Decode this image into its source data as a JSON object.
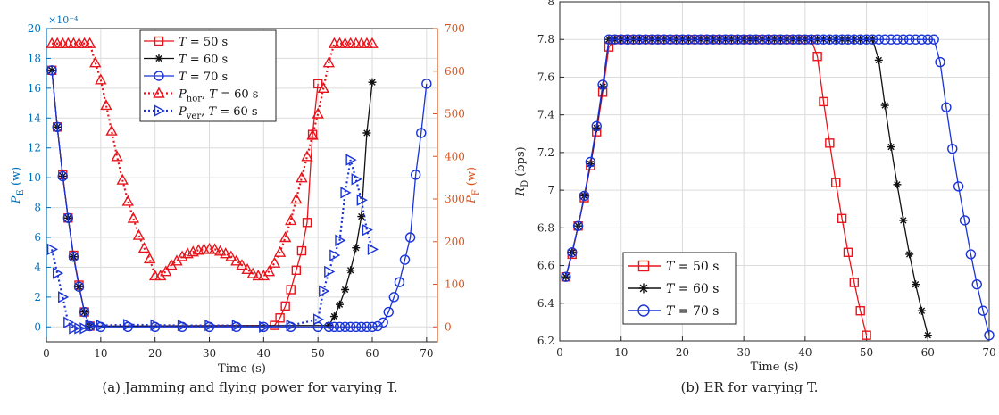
{
  "chart_data": [
    {
      "type": "line",
      "id": "a",
      "caption": "(a) Jamming and flying power for varying T.",
      "xlabel": "Time (s)",
      "ylabel": "P_E (w)",
      "y2label": "P_F (w)",
      "exponent_label": "×10⁻⁴",
      "xlim": [
        0,
        72
      ],
      "ylim": [
        -1,
        20
      ],
      "y2lim": [
        -35,
        700
      ],
      "xticks": [
        0,
        10,
        20,
        30,
        40,
        50,
        60,
        70
      ],
      "yticks": [
        0,
        2,
        4,
        6,
        8,
        10,
        12,
        14,
        16,
        18,
        20
      ],
      "y2ticks": [
        0,
        100,
        200,
        300,
        400,
        500,
        600,
        700
      ],
      "grid": true,
      "legend_position": "top-center",
      "colors": {
        "left_axis": "#0072BD",
        "right_axis": "#D95319",
        "red": "#E8141B",
        "black": "#111111",
        "blue": "#1A34D6"
      },
      "series": [
        {
          "name": "T = 50 s",
          "axis": "left",
          "color": "#E8141B",
          "marker": "square",
          "dash": "solid",
          "x": [
            1,
            2,
            3,
            4,
            5,
            6,
            7,
            8,
            42,
            43,
            44,
            45,
            46,
            47,
            48,
            49,
            50
          ],
          "y": [
            17.2,
            13.4,
            10.2,
            7.3,
            4.8,
            2.8,
            1.0,
            0.05,
            0.1,
            0.6,
            1.4,
            2.5,
            3.8,
            5.1,
            7.0,
            12.9,
            16.3
          ]
        },
        {
          "name": "T = 60 s",
          "axis": "left",
          "color": "#111111",
          "marker": "star",
          "dash": "solid",
          "x": [
            1,
            2,
            3,
            4,
            5,
            6,
            7,
            8,
            52,
            53,
            54,
            55,
            56,
            57,
            58,
            59,
            60
          ],
          "y": [
            17.2,
            13.4,
            10.1,
            7.3,
            4.7,
            2.7,
            1.0,
            0.05,
            0.1,
            0.7,
            1.5,
            2.5,
            3.8,
            5.3,
            7.4,
            13.0,
            16.4
          ]
        },
        {
          "name": "T = 70 s",
          "axis": "left",
          "color": "#1A34D6",
          "marker": "circle",
          "dash": "solid",
          "x": [
            1,
            2,
            3,
            4,
            5,
            6,
            7,
            8,
            10,
            15,
            20,
            25,
            30,
            35,
            40,
            45,
            50,
            52,
            53,
            54,
            55,
            56,
            57,
            58,
            59,
            60,
            61,
            62,
            63,
            64,
            65,
            66,
            67,
            68,
            69,
            70
          ],
          "y": [
            17.2,
            13.4,
            10.1,
            7.3,
            4.7,
            2.7,
            1.0,
            0.05,
            0.0,
            0.0,
            0.0,
            0.0,
            0.0,
            0.0,
            0.0,
            0.0,
            0.0,
            0.0,
            0.0,
            0.0,
            0.0,
            0.0,
            0.0,
            0.0,
            0.0,
            0.0,
            0.05,
            0.3,
            1.0,
            2.0,
            3.0,
            4.5,
            6.0,
            10.2,
            13.0,
            16.3
          ]
        },
        {
          "name": "P_hor, T = 60 s",
          "axis": "right",
          "color": "#E8141B",
          "marker": "triangle-up",
          "dash": "dotted",
          "x": [
            1,
            2,
            3,
            4,
            5,
            6,
            7,
            8,
            9,
            10,
            11,
            12,
            13,
            14,
            15,
            16,
            17,
            18,
            19,
            20,
            21,
            22,
            23,
            24,
            25,
            26,
            27,
            28,
            29,
            30,
            31,
            32,
            33,
            34,
            35,
            36,
            37,
            38,
            39,
            40,
            41,
            42,
            43,
            44,
            45,
            46,
            47,
            48,
            49,
            50,
            51,
            52,
            53,
            54,
            55,
            56,
            57,
            58,
            59,
            60
          ],
          "y": [
            665,
            665,
            665,
            665,
            665,
            665,
            665,
            665,
            620,
            580,
            520,
            460,
            400,
            345,
            295,
            255,
            215,
            185,
            160,
            120,
            120,
            130,
            145,
            155,
            165,
            172,
            176,
            180,
            182,
            183,
            182,
            178,
            172,
            165,
            155,
            145,
            135,
            125,
            120,
            120,
            130,
            150,
            175,
            210,
            250,
            300,
            350,
            400,
            450,
            500,
            560,
            620,
            665,
            665,
            665,
            665,
            665,
            665,
            665,
            665
          ]
        },
        {
          "name": "P_ver, T = 60 s",
          "axis": "left",
          "color": "#1A34D6",
          "marker": "triangle-right",
          "dash": "dotted",
          "x": [
            1,
            2,
            3,
            4,
            5,
            6,
            7,
            8,
            10,
            15,
            20,
            25,
            30,
            35,
            40,
            45,
            50,
            51,
            52,
            53,
            54,
            55,
            56,
            57,
            58,
            59,
            60
          ],
          "y": [
            5.2,
            3.6,
            2.0,
            0.3,
            -0.1,
            -0.1,
            -0.1,
            0.1,
            0.1,
            0.15,
            0.12,
            0.1,
            0.1,
            0.1,
            0.0,
            0.1,
            0.5,
            2.4,
            3.7,
            4.8,
            5.8,
            9.0,
            11.2,
            9.9,
            8.5,
            6.5,
            5.2
          ]
        }
      ]
    },
    {
      "type": "line",
      "id": "b",
      "caption": "(b) ER for varying T.",
      "xlabel": "Time (s)",
      "ylabel": "R_D (bps)",
      "xlim": [
        0,
        70
      ],
      "ylim": [
        6.2,
        8
      ],
      "xticks": [
        0,
        10,
        20,
        30,
        40,
        50,
        60,
        70
      ],
      "yticks": [
        6.2,
        6.4,
        6.6,
        6.8,
        7,
        7.2,
        7.4,
        7.6,
        7.8,
        8
      ],
      "grid": true,
      "legend_position": "bottom-left",
      "series": [
        {
          "name": "T = 50 s",
          "color": "#E8141B",
          "marker": "square",
          "x": [
            1,
            2,
            3,
            4,
            5,
            6,
            7,
            8,
            9,
            10,
            11,
            12,
            13,
            14,
            15,
            16,
            17,
            18,
            19,
            20,
            21,
            22,
            23,
            24,
            25,
            26,
            27,
            28,
            29,
            30,
            31,
            32,
            33,
            34,
            35,
            36,
            37,
            38,
            39,
            40,
            41,
            42,
            43,
            44,
            45,
            46,
            47,
            48,
            49,
            50
          ],
          "y": [
            6.54,
            6.66,
            6.81,
            6.96,
            7.13,
            7.31,
            7.52,
            7.76,
            7.8,
            7.8,
            7.8,
            7.8,
            7.8,
            7.8,
            7.8,
            7.8,
            7.8,
            7.8,
            7.8,
            7.8,
            7.8,
            7.8,
            7.8,
            7.8,
            7.8,
            7.8,
            7.8,
            7.8,
            7.8,
            7.8,
            7.8,
            7.8,
            7.8,
            7.8,
            7.8,
            7.8,
            7.8,
            7.8,
            7.8,
            7.8,
            7.8,
            7.71,
            7.47,
            7.25,
            7.04,
            6.85,
            6.67,
            6.51,
            6.36,
            6.23
          ]
        },
        {
          "name": "T = 60 s",
          "color": "#111111",
          "marker": "star",
          "x": [
            1,
            2,
            3,
            4,
            5,
            6,
            7,
            8,
            9,
            10,
            11,
            12,
            13,
            14,
            15,
            16,
            17,
            18,
            19,
            20,
            21,
            22,
            23,
            24,
            25,
            26,
            27,
            28,
            29,
            30,
            31,
            32,
            33,
            34,
            35,
            36,
            37,
            38,
            39,
            40,
            41,
            42,
            43,
            44,
            45,
            46,
            47,
            48,
            49,
            50,
            51,
            52,
            53,
            54,
            55,
            56,
            57,
            58,
            59,
            60
          ],
          "y": [
            6.54,
            6.67,
            6.81,
            6.97,
            7.14,
            7.33,
            7.55,
            7.8,
            7.8,
            7.8,
            7.8,
            7.8,
            7.8,
            7.8,
            7.8,
            7.8,
            7.8,
            7.8,
            7.8,
            7.8,
            7.8,
            7.8,
            7.8,
            7.8,
            7.8,
            7.8,
            7.8,
            7.8,
            7.8,
            7.8,
            7.8,
            7.8,
            7.8,
            7.8,
            7.8,
            7.8,
            7.8,
            7.8,
            7.8,
            7.8,
            7.8,
            7.8,
            7.8,
            7.8,
            7.8,
            7.8,
            7.8,
            7.8,
            7.8,
            7.8,
            7.8,
            7.69,
            7.45,
            7.23,
            7.03,
            6.84,
            6.66,
            6.5,
            6.36,
            6.23
          ]
        },
        {
          "name": "T = 70 s",
          "color": "#1A34D6",
          "marker": "circle",
          "x": [
            1,
            2,
            3,
            4,
            5,
            6,
            7,
            8,
            9,
            10,
            11,
            12,
            13,
            14,
            15,
            16,
            17,
            18,
            19,
            20,
            21,
            22,
            23,
            24,
            25,
            26,
            27,
            28,
            29,
            30,
            31,
            32,
            33,
            34,
            35,
            36,
            37,
            38,
            39,
            40,
            41,
            42,
            43,
            44,
            45,
            46,
            47,
            48,
            49,
            50,
            51,
            52,
            53,
            54,
            55,
            56,
            57,
            58,
            59,
            60,
            61,
            62,
            63,
            64,
            65,
            66,
            67,
            68,
            69,
            70
          ],
          "y": [
            6.54,
            6.67,
            6.81,
            6.97,
            7.15,
            7.34,
            7.56,
            7.8,
            7.8,
            7.8,
            7.8,
            7.8,
            7.8,
            7.8,
            7.8,
            7.8,
            7.8,
            7.8,
            7.8,
            7.8,
            7.8,
            7.8,
            7.8,
            7.8,
            7.8,
            7.8,
            7.8,
            7.8,
            7.8,
            7.8,
            7.8,
            7.8,
            7.8,
            7.8,
            7.8,
            7.8,
            7.8,
            7.8,
            7.8,
            7.8,
            7.8,
            7.8,
            7.8,
            7.8,
            7.8,
            7.8,
            7.8,
            7.8,
            7.8,
            7.8,
            7.8,
            7.8,
            7.8,
            7.8,
            7.8,
            7.8,
            7.8,
            7.8,
            7.8,
            7.8,
            7.8,
            7.68,
            7.44,
            7.22,
            7.02,
            6.84,
            6.66,
            6.5,
            6.36,
            6.23
          ]
        }
      ]
    }
  ]
}
